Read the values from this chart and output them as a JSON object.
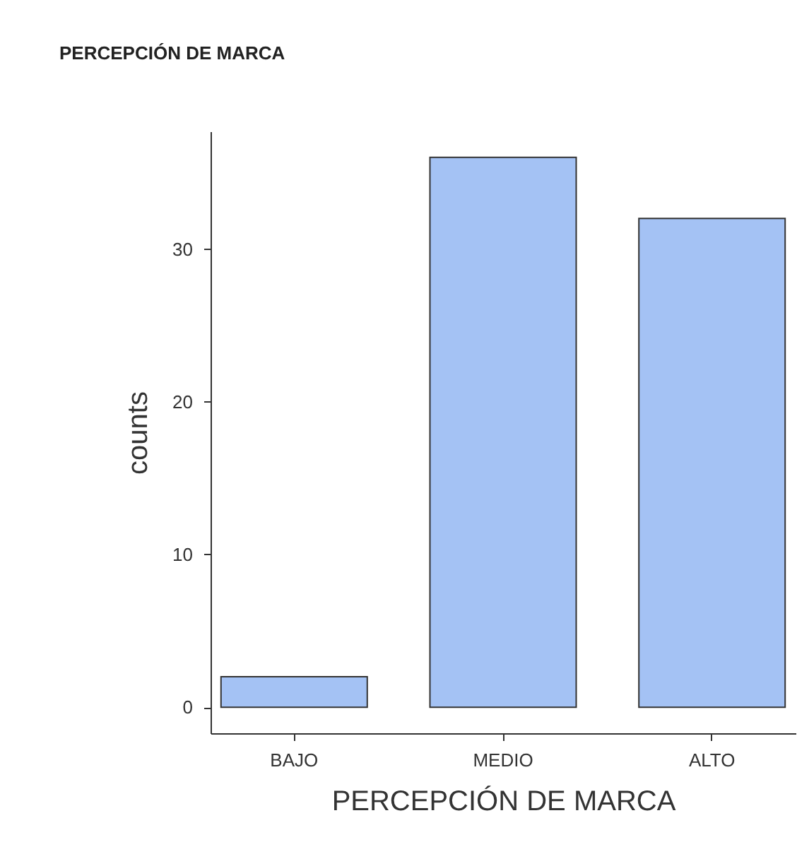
{
  "chart_data": {
    "type": "bar",
    "title": "PERCEPCIÓN DE MARCA",
    "xlabel": "PERCEPCIÓN DE MARCA",
    "ylabel": "counts",
    "categories": [
      "BAJO",
      "MEDIO",
      "ALTO"
    ],
    "values": [
      2,
      36,
      32
    ],
    "color": "#a4c2f4",
    "ylim": [
      -1.7,
      37.7
    ],
    "yticks": [
      0,
      10,
      20,
      30
    ],
    "grid": false,
    "legend": false
  }
}
